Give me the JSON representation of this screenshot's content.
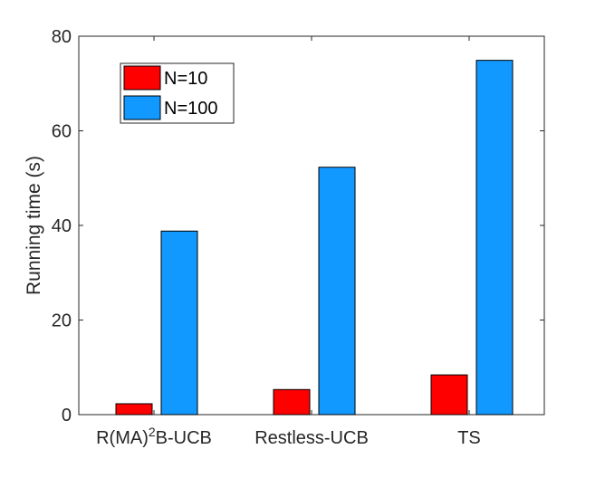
{
  "chart_data": {
    "type": "bar",
    "categories": [
      "R(MA)2B-UCB",
      "Restless-UCB",
      "TS"
    ],
    "series": [
      {
        "name": "N=10",
        "color": "#ff0000",
        "values": [
          2.3,
          5.3,
          8.4
        ]
      },
      {
        "name": "N=100",
        "color": "#1199ff",
        "values": [
          38.8,
          52.3,
          74.9
        ]
      }
    ],
    "xlabel": "",
    "ylabel": "Running time (s)",
    "ylim": [
      0,
      80
    ],
    "yticks": [
      0,
      20,
      40,
      60,
      80
    ],
    "grid": false,
    "legend_position": "top-left"
  }
}
